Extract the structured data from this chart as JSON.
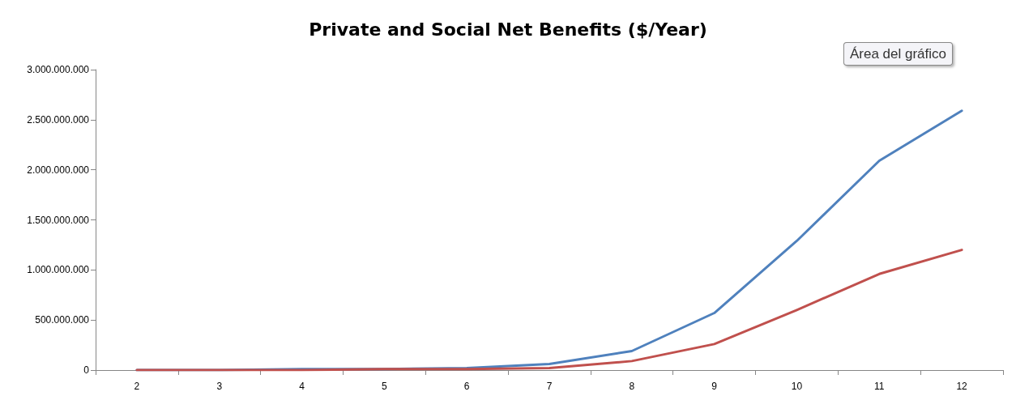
{
  "chart_data": {
    "type": "line",
    "title": "Private and Social Net Benefits ($/Year)",
    "categories": [
      "2",
      "3",
      "4",
      "5",
      "6",
      "7",
      "8",
      "9",
      "10",
      "11",
      "12"
    ],
    "series": [
      {
        "color": "#4f81bd",
        "values": [
          0,
          0,
          10000000,
          10000000,
          20000000,
          60000000,
          190000000,
          570000000,
          1290000000,
          2090000000,
          2590000000
        ]
      },
      {
        "color": "#c0504d",
        "values": [
          0,
          0,
          0,
          10000000,
          10000000,
          20000000,
          90000000,
          260000000,
          600000000,
          960000000,
          1200000000
        ]
      }
    ],
    "ylim": [
      0,
      3000000000
    ],
    "yticks": [
      {
        "value": 0,
        "label": "0"
      },
      {
        "value": 500000000,
        "label": "500.000.000"
      },
      {
        "value": 1000000000,
        "label": "1.000.000.000"
      },
      {
        "value": 1500000000,
        "label": "1.500.000.000"
      },
      {
        "value": 2000000000,
        "label": "2.000.000.000"
      },
      {
        "value": 2500000000,
        "label": "2.500.000.000"
      },
      {
        "value": 3000000000,
        "label": "3.000.000.000"
      }
    ],
    "annotations": [
      "Área del gráfico"
    ],
    "grid": false,
    "marker": "none",
    "line_style": "solid"
  }
}
